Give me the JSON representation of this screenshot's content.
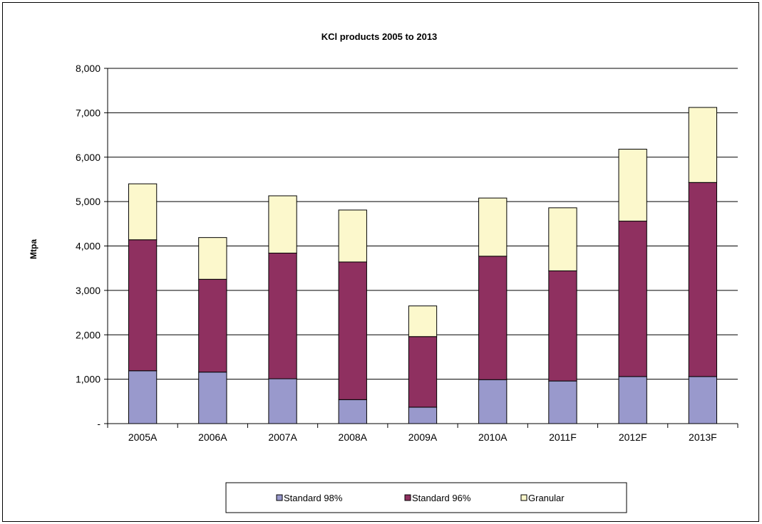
{
  "chart_data": {
    "type": "bar",
    "stacked": true,
    "title": "KCl products 2005 to 2013",
    "xlabel": "",
    "ylabel": "Mtpa",
    "ylim": [
      0,
      8000
    ],
    "yticks": [
      0,
      1000,
      2000,
      3000,
      4000,
      5000,
      6000,
      7000,
      8000
    ],
    "ytick_labels": [
      "-",
      "1,000",
      "2,000",
      "3,000",
      "4,000",
      "5,000",
      "6,000",
      "7,000",
      "8,000"
    ],
    "grid": true,
    "legend_position": "bottom",
    "categories": [
      "2005A",
      "2006A",
      "2007A",
      "2008A",
      "2009A",
      "2010A",
      "2011F",
      "2012F",
      "2013F"
    ],
    "series": [
      {
        "name": "Standard 98%",
        "color": "#9999cc",
        "values": [
          1190,
          1160,
          1010,
          540,
          370,
          990,
          960,
          1060,
          1060
        ]
      },
      {
        "name": "Standard 96%",
        "color": "#8f3060",
        "values": [
          2950,
          2090,
          2830,
          3100,
          1590,
          2780,
          2480,
          3500,
          4370
        ]
      },
      {
        "name": "Granular",
        "color": "#fcf8cc",
        "values": [
          1260,
          940,
          1290,
          1170,
          690,
          1310,
          1420,
          1620,
          1690
        ]
      }
    ]
  }
}
